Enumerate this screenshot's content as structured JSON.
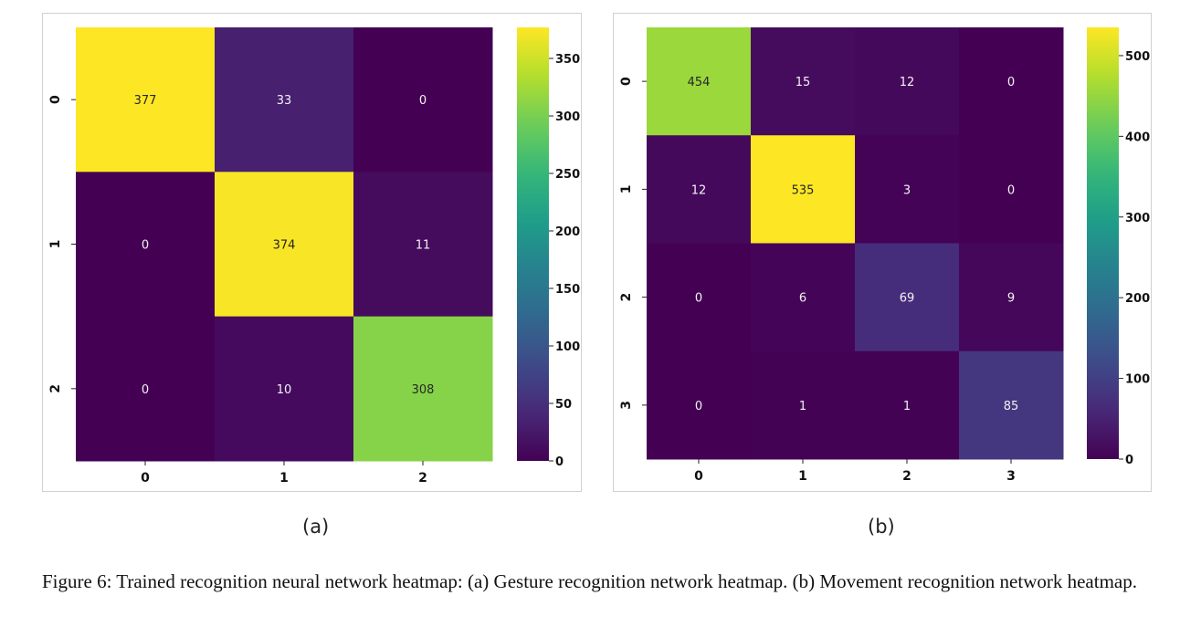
{
  "figure": {
    "label_a": "(a)",
    "label_b": "(b)",
    "caption": "Figure 6: Trained recognition neural network heatmap: (a) Gesture recognition network heatmap. (b) Movement recognition network heatmap."
  },
  "chart_data": [
    {
      "type": "heatmap",
      "title": "",
      "xlabel": "",
      "ylabel": "",
      "x_labels": [
        "0",
        "1",
        "2"
      ],
      "y_labels": [
        "0",
        "1",
        "2"
      ],
      "values": [
        [
          377,
          33,
          0
        ],
        [
          0,
          374,
          11
        ],
        [
          0,
          10,
          308
        ]
      ],
      "vmin": 0,
      "vmax": 377,
      "colormap": "viridis",
      "colorbar_ticks": [
        0,
        50,
        100,
        150,
        200,
        250,
        300,
        350
      ]
    },
    {
      "type": "heatmap",
      "title": "",
      "xlabel": "",
      "ylabel": "",
      "x_labels": [
        "0",
        "1",
        "2",
        "3"
      ],
      "y_labels": [
        "0",
        "1",
        "2",
        "3"
      ],
      "values": [
        [
          454,
          15,
          12,
          0
        ],
        [
          12,
          535,
          3,
          0
        ],
        [
          0,
          6,
          69,
          9
        ],
        [
          0,
          1,
          1,
          85
        ]
      ],
      "vmin": 0,
      "vmax": 535,
      "colormap": "viridis",
      "colorbar_ticks": [
        0,
        100,
        200,
        300,
        400,
        500
      ]
    }
  ]
}
